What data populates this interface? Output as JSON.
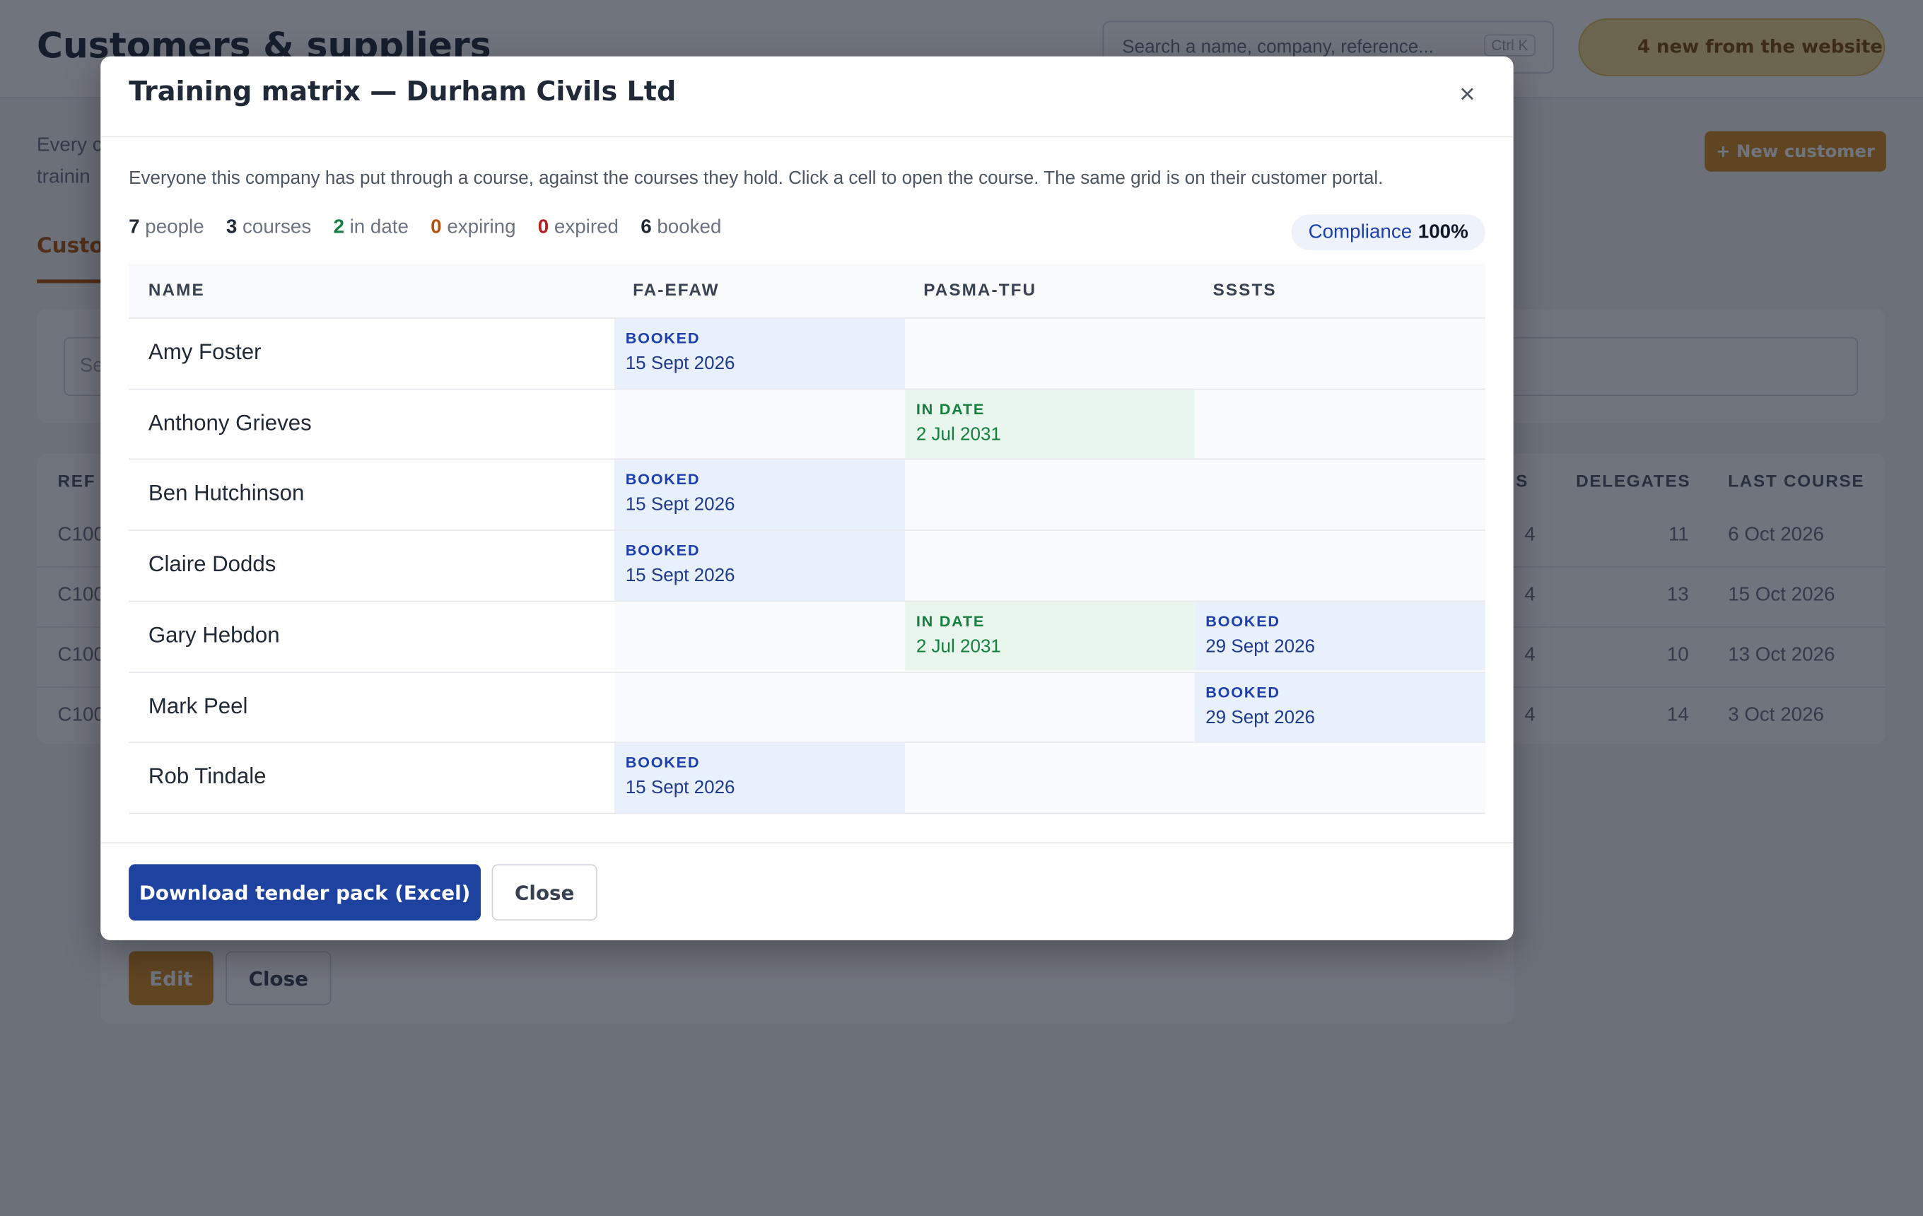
{
  "background": {
    "title": "Customers & suppliers",
    "search_placeholder": "Search a name, company, reference...",
    "shortcut": "Ctrl K",
    "notification": "4 new from the website",
    "new_button": "+ New customer",
    "intro_fragments": [
      "Every c",
      "trainin"
    ],
    "tab": "Custo",
    "filter_placeholder": "Se",
    "table": {
      "headers": [
        "REF",
        "S",
        "DELEGATES",
        "LAST COURSE"
      ],
      "rows": [
        [
          "C100",
          "4",
          "11",
          "6 Oct 2026"
        ],
        [
          "C100",
          "4",
          "13",
          "15 Oct 2026"
        ],
        [
          "C100",
          "4",
          "10",
          "13 Oct 2026"
        ],
        [
          "C100",
          "4",
          "14",
          "3 Oct 2026"
        ]
      ]
    },
    "buttons": [
      "Edit",
      "Close"
    ]
  },
  "modal": {
    "title": "Training matrix — Durham Civils Ltd",
    "close_icon": "×",
    "description": "Everyone this company has put through a course, against the courses they hold. Click a cell to open the course. The same grid is on their customer portal.",
    "stats": [
      {
        "value": 7,
        "label": "people"
      },
      {
        "value": 3,
        "label": "courses"
      },
      {
        "value": 2,
        "label": "in date"
      },
      {
        "value": 0,
        "label": "expiring"
      },
      {
        "value": 0,
        "label": "expired"
      },
      {
        "value": 6,
        "label": "booked"
      }
    ],
    "compliance": {
      "label": "Compliance",
      "value": "100%"
    },
    "table": {
      "headers": [
        "NAME",
        "FA-EFAW",
        "PASMA-TFU",
        "SSSTS"
      ],
      "rows": [
        {
          "name": "Amy Foster",
          "cells": [
            {
              "status": "BOOKED",
              "date": "15 Sept 2026"
            },
            null,
            null
          ]
        },
        {
          "name": "Anthony Grieves",
          "cells": [
            null,
            {
              "status": "IN DATE",
              "date": "2 Jul 2031"
            },
            null
          ]
        },
        {
          "name": "Ben Hutchinson",
          "cells": [
            {
              "status": "BOOKED",
              "date": "15 Sept 2026"
            },
            null,
            null
          ]
        },
        {
          "name": "Claire Dodds",
          "cells": [
            {
              "status": "BOOKED",
              "date": "15 Sept 2026"
            },
            null,
            null
          ]
        },
        {
          "name": "Gary Hebdon",
          "cells": [
            null,
            {
              "status": "IN DATE",
              "date": "2 Jul 2031"
            },
            {
              "status": "BOOKED",
              "date": "29 Sept 2026"
            }
          ]
        },
        {
          "name": "Mark Peel",
          "cells": [
            null,
            null,
            {
              "status": "BOOKED",
              "date": "29 Sept 2026"
            }
          ]
        },
        {
          "name": "Rob Tindale",
          "cells": [
            {
              "status": "BOOKED",
              "date": "15 Sept 2026"
            },
            null,
            null
          ]
        }
      ]
    },
    "buttons": [
      "Download tender pack (Excel)",
      "Close"
    ]
  }
}
